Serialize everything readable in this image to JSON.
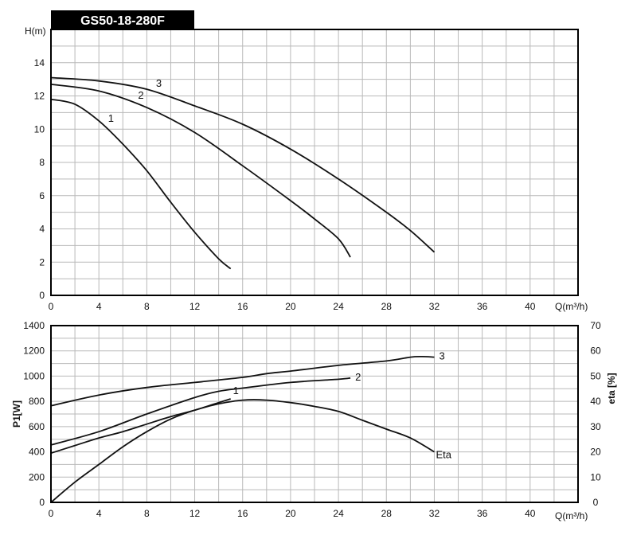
{
  "title": "GS50-18-280F",
  "chart_data": [
    {
      "type": "line",
      "xlabel": "Q(m³/h)",
      "ylabel": "H(m)",
      "xlim": [
        0,
        44
      ],
      "ylim": [
        0,
        16
      ],
      "xticks": [
        0,
        4,
        8,
        12,
        16,
        20,
        24,
        28,
        32,
        36,
        40
      ],
      "yticks": [
        0,
        2,
        4,
        6,
        8,
        10,
        12,
        14
      ],
      "grid": true,
      "series": [
        {
          "name": "1",
          "points": [
            [
              0,
              11.8
            ],
            [
              2,
              11.5
            ],
            [
              4,
              10.5
            ],
            [
              6,
              9.1
            ],
            [
              8,
              7.5
            ],
            [
              10,
              5.6
            ],
            [
              12,
              3.8
            ],
            [
              14,
              2.2
            ],
            [
              15,
              1.6
            ]
          ]
        },
        {
          "name": "2",
          "points": [
            [
              0,
              12.7
            ],
            [
              4,
              12.3
            ],
            [
              8,
              11.3
            ],
            [
              12,
              9.8
            ],
            [
              16,
              7.8
            ],
            [
              20,
              5.7
            ],
            [
              22,
              4.6
            ],
            [
              24,
              3.4
            ],
            [
              25,
              2.3
            ]
          ]
        },
        {
          "name": "3",
          "points": [
            [
              0,
              13.1
            ],
            [
              4,
              12.9
            ],
            [
              8,
              12.4
            ],
            [
              12,
              11.4
            ],
            [
              16,
              10.3
            ],
            [
              20,
              8.8
            ],
            [
              24,
              7.0
            ],
            [
              28,
              5.0
            ],
            [
              30,
              3.9
            ],
            [
              32,
              2.6
            ]
          ]
        }
      ]
    },
    {
      "type": "line",
      "xlabel": "Q(m³/h)",
      "ylabel": "P1[W]",
      "ylabel_right": "eta [%]",
      "xlim": [
        0,
        44
      ],
      "ylim": [
        0,
        1400
      ],
      "ylim_right": [
        0,
        70
      ],
      "xticks": [
        0,
        4,
        8,
        12,
        16,
        20,
        24,
        28,
        32,
        36,
        40
      ],
      "yticks": [
        0,
        200,
        400,
        600,
        800,
        1000,
        1200,
        1400
      ],
      "yticks_right": [
        0,
        10,
        20,
        30,
        40,
        50,
        60,
        70
      ],
      "grid": true,
      "series": [
        {
          "name": "1",
          "axis": "left",
          "points": [
            [
              0,
              390
            ],
            [
              2,
              450
            ],
            [
              4,
              510
            ],
            [
              6,
              560
            ],
            [
              8,
              620
            ],
            [
              10,
              680
            ],
            [
              12,
              730
            ],
            [
              14,
              790
            ],
            [
              15,
              820
            ]
          ]
        },
        {
          "name": "2",
          "axis": "left",
          "points": [
            [
              0,
              455
            ],
            [
              4,
              560
            ],
            [
              8,
              700
            ],
            [
              12,
              830
            ],
            [
              14,
              880
            ],
            [
              16,
              905
            ],
            [
              20,
              950
            ],
            [
              24,
              975
            ],
            [
              25,
              985
            ]
          ]
        },
        {
          "name": "3",
          "axis": "left",
          "points": [
            [
              0,
              765
            ],
            [
              4,
              850
            ],
            [
              8,
              910
            ],
            [
              12,
              950
            ],
            [
              16,
              990
            ],
            [
              18,
              1020
            ],
            [
              20,
              1040
            ],
            [
              24,
              1085
            ],
            [
              28,
              1120
            ],
            [
              30,
              1150
            ],
            [
              31,
              1155
            ],
            [
              32,
              1150
            ]
          ]
        },
        {
          "name": "Eta",
          "axis": "right",
          "points": [
            [
              0,
              0
            ],
            [
              2,
              8
            ],
            [
              4,
              15
            ],
            [
              6,
              22
            ],
            [
              8,
              28
            ],
            [
              10,
              33
            ],
            [
              12,
              36.5
            ],
            [
              14,
              39
            ],
            [
              16,
              40.5
            ],
            [
              18,
              40.5
            ],
            [
              20,
              39.5
            ],
            [
              22,
              38
            ],
            [
              24,
              36
            ],
            [
              26,
              32.5
            ],
            [
              28,
              29
            ],
            [
              30,
              25.5
            ],
            [
              32,
              20
            ]
          ]
        }
      ]
    }
  ]
}
